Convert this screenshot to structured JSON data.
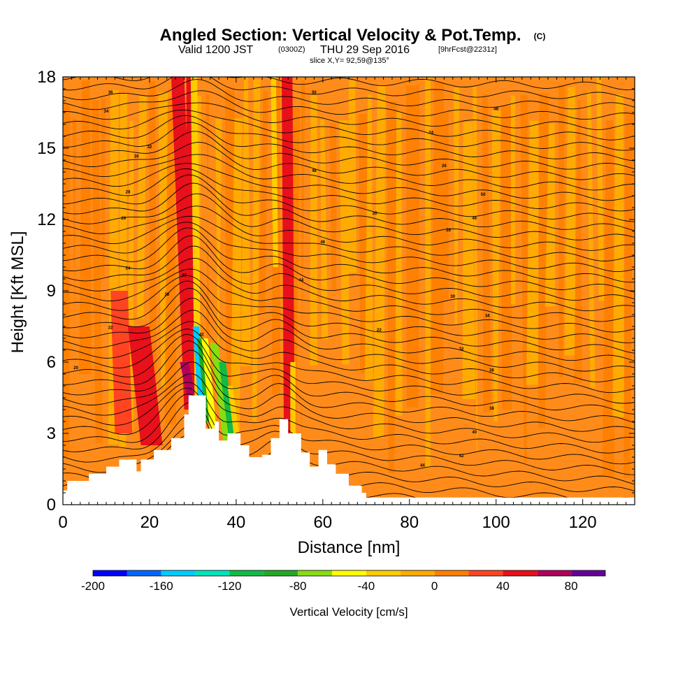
{
  "title": {
    "main": "Angled Section: Vertical Velocity & Pot.Temp.",
    "units": "(C)",
    "valid_prefix": "Valid 1200 JST",
    "valid_zulu": "(0300Z)",
    "valid_date": "THU 29 Sep 2016",
    "forecast": "[9hrFcst@2231z]",
    "slice": "slice X,Y= 92,59@135°"
  },
  "chart_data": {
    "type": "heatmap",
    "xlabel": "Distance [nm]",
    "ylabel": "Height [Kft MSL]",
    "xlim": [
      0,
      132
    ],
    "ylim": [
      0,
      18
    ],
    "x_ticks": [
      0,
      20,
      40,
      60,
      80,
      100,
      120
    ],
    "y_ticks": [
      0,
      3,
      6,
      9,
      12,
      15,
      18
    ],
    "grid": false,
    "colorbar": {
      "label": "Vertical Velocity [cm/s]",
      "ticks": [
        -200,
        -160,
        -120,
        -80,
        -40,
        0,
        40,
        80
      ],
      "bins": [
        -200,
        -180,
        -160,
        -140,
        -120,
        -100,
        -80,
        -60,
        -40,
        -20,
        0,
        20,
        40,
        60,
        80,
        100
      ],
      "colors": [
        "#0000ff",
        "#0066ff",
        "#00ccff",
        "#00e5bb",
        "#11bb44",
        "#22aa22",
        "#88dd11",
        "#ffff00",
        "#ffcc00",
        "#ffaa00",
        "#ff7f00",
        "#ff4422",
        "#e8101a",
        "#b0005a",
        "#660099"
      ]
    },
    "terrain": [
      [
        0,
        0.6
      ],
      [
        1,
        1.0
      ],
      [
        6,
        1.3
      ],
      [
        10,
        1.6
      ],
      [
        13,
        1.9
      ],
      [
        17,
        1.4
      ],
      [
        18,
        1.9
      ],
      [
        21,
        2.3
      ],
      [
        25,
        2.8
      ],
      [
        28,
        3.8
      ],
      [
        29,
        4.6
      ],
      [
        32,
        4.6
      ],
      [
        33,
        3.2
      ],
      [
        35,
        3.5
      ],
      [
        36,
        2.7
      ],
      [
        38,
        3.0
      ],
      [
        41,
        2.5
      ],
      [
        43,
        2.0
      ],
      [
        46,
        2.1
      ],
      [
        48,
        2.8
      ],
      [
        50,
        3.6
      ],
      [
        52,
        3.0
      ],
      [
        55,
        2.2
      ],
      [
        57,
        1.6
      ],
      [
        59,
        2.3
      ],
      [
        61,
        1.7
      ],
      [
        63,
        1.3
      ],
      [
        66,
        0.8
      ],
      [
        69,
        0.5
      ],
      [
        70,
        0.3
      ],
      [
        132,
        0.3
      ]
    ],
    "velocity_bands": [
      {
        "x": 22,
        "value": 40
      },
      {
        "x": 26,
        "value": 50
      },
      {
        "x": 29,
        "value": 60
      },
      {
        "x": 30,
        "value": -40
      },
      {
        "x": 31,
        "value": -160
      },
      {
        "x": 32,
        "value": -100
      },
      {
        "x": 35,
        "value": -60
      },
      {
        "x": 37,
        "value": -120
      },
      {
        "x": 39,
        "value": -40
      },
      {
        "x": 51,
        "value": 40
      },
      {
        "x": 53,
        "value": -30
      },
      {
        "x": 14,
        "value": 30
      },
      {
        "x": 12,
        "value": -30
      }
    ],
    "isentrope_labels": [
      "20",
      "22",
      "24",
      "26",
      "28",
      "30",
      "32",
      "34",
      "36",
      "38",
      "40",
      "42",
      "44",
      "46",
      "48",
      "50"
    ]
  }
}
